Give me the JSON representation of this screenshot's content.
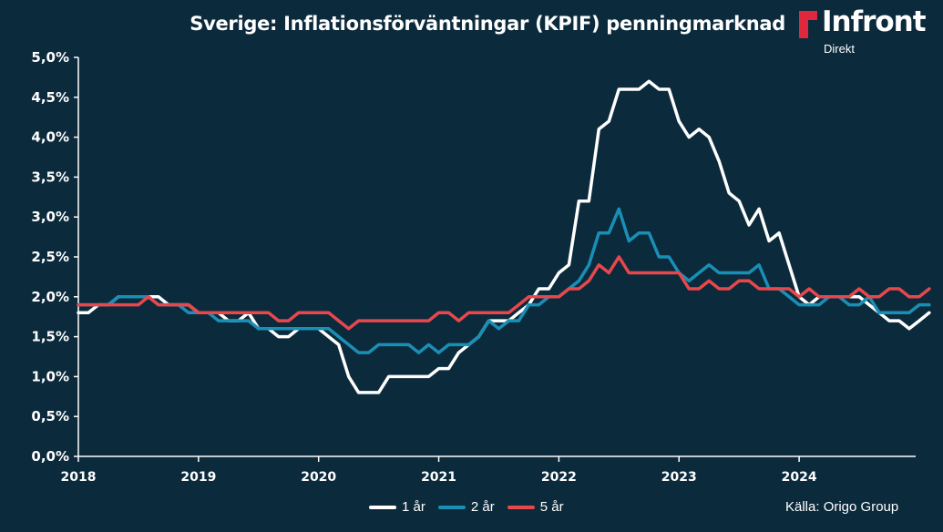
{
  "title": "Sverige: Inflationsförväntningar (KPIF) penningmarknad",
  "brand": {
    "name": "Infront",
    "sub": "Direkt",
    "accent": "#e0283c"
  },
  "source": "Källa:  Origo Group",
  "colors": {
    "background": "#0b2a3c",
    "axis": "#ffffff"
  },
  "chart_data": {
    "type": "line",
    "title": "Sverige: Inflationsförväntningar (KPIF) penningmarknad",
    "xlabel": "",
    "ylabel": "",
    "x_ticks": [
      "2018",
      "2019",
      "2020",
      "2021",
      "2022",
      "2023",
      "2024"
    ],
    "x_start": 2018.0,
    "x_step": 0.08333,
    "xlim": [
      2018.0,
      2024.97
    ],
    "ylim": [
      0,
      5
    ],
    "y_ticks": [
      "0,0%",
      "0,5%",
      "1,0%",
      "1,5%",
      "2,0%",
      "2,5%",
      "3,0%",
      "3,5%",
      "4,0%",
      "4,5%",
      "5,0%"
    ],
    "grid": false,
    "legend_position": "bottom",
    "series": [
      {
        "name": "1 år",
        "color": "#ffffff",
        "values": [
          1.8,
          1.8,
          1.9,
          1.9,
          2.0,
          2.0,
          2.0,
          2.0,
          2.0,
          1.9,
          1.9,
          1.9,
          1.8,
          1.8,
          1.8,
          1.7,
          1.7,
          1.8,
          1.6,
          1.6,
          1.5,
          1.5,
          1.6,
          1.6,
          1.6,
          1.5,
          1.4,
          1.0,
          0.8,
          0.8,
          0.8,
          1.0,
          1.0,
          1.0,
          1.0,
          1.0,
          1.1,
          1.1,
          1.3,
          1.4,
          1.5,
          1.7,
          1.7,
          1.7,
          1.8,
          1.9,
          2.1,
          2.1,
          2.3,
          2.4,
          3.2,
          3.2,
          4.1,
          4.2,
          4.6,
          4.6,
          4.6,
          4.7,
          4.6,
          4.6,
          4.2,
          4.0,
          4.1,
          4.0,
          3.7,
          3.3,
          3.2,
          2.9,
          3.1,
          2.7,
          2.8,
          2.4,
          2.0,
          1.9,
          2.0,
          2.0,
          2.0,
          2.0,
          2.0,
          1.9,
          1.8,
          1.7,
          1.7,
          1.6,
          1.7,
          1.8
        ]
      },
      {
        "name": "2 år",
        "color": "#1a8fb5",
        "values": [
          1.9,
          1.9,
          1.9,
          1.9,
          2.0,
          2.0,
          2.0,
          2.0,
          1.9,
          1.9,
          1.9,
          1.8,
          1.8,
          1.8,
          1.7,
          1.7,
          1.7,
          1.7,
          1.6,
          1.6,
          1.6,
          1.6,
          1.6,
          1.6,
          1.6,
          1.6,
          1.5,
          1.4,
          1.3,
          1.3,
          1.4,
          1.4,
          1.4,
          1.4,
          1.3,
          1.4,
          1.3,
          1.4,
          1.4,
          1.4,
          1.5,
          1.7,
          1.6,
          1.7,
          1.7,
          1.9,
          1.9,
          2.0,
          2.0,
          2.1,
          2.2,
          2.4,
          2.8,
          2.8,
          3.1,
          2.7,
          2.8,
          2.8,
          2.5,
          2.5,
          2.3,
          2.2,
          2.3,
          2.4,
          2.3,
          2.3,
          2.3,
          2.3,
          2.4,
          2.1,
          2.1,
          2.0,
          1.9,
          1.9,
          1.9,
          2.0,
          2.0,
          1.9,
          1.9,
          2.0,
          1.8,
          1.8,
          1.8,
          1.8,
          1.9,
          1.9
        ]
      },
      {
        "name": "5 år",
        "color": "#e8474c",
        "values": [
          1.9,
          1.9,
          1.9,
          1.9,
          1.9,
          1.9,
          1.9,
          2.0,
          1.9,
          1.9,
          1.9,
          1.9,
          1.8,
          1.8,
          1.8,
          1.8,
          1.8,
          1.8,
          1.8,
          1.8,
          1.7,
          1.7,
          1.8,
          1.8,
          1.8,
          1.8,
          1.7,
          1.6,
          1.7,
          1.7,
          1.7,
          1.7,
          1.7,
          1.7,
          1.7,
          1.7,
          1.8,
          1.8,
          1.7,
          1.8,
          1.8,
          1.8,
          1.8,
          1.8,
          1.9,
          2.0,
          2.0,
          2.0,
          2.0,
          2.1,
          2.1,
          2.2,
          2.4,
          2.3,
          2.5,
          2.3,
          2.3,
          2.3,
          2.3,
          2.3,
          2.3,
          2.1,
          2.1,
          2.2,
          2.1,
          2.1,
          2.2,
          2.2,
          2.1,
          2.1,
          2.1,
          2.1,
          2.0,
          2.1,
          2.0,
          2.0,
          2.0,
          2.0,
          2.1,
          2.0,
          2.0,
          2.1,
          2.1,
          2.0,
          2.0,
          2.1
        ]
      }
    ]
  }
}
